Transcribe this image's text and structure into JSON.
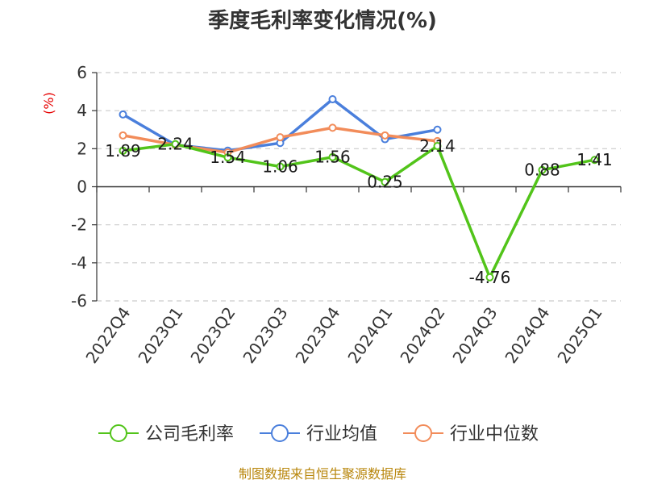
{
  "chart_data": {
    "type": "line",
    "title": "季度毛利率变化情况(%)",
    "ylabel": "(%)",
    "xlabel": "",
    "categories": [
      "2022Q4",
      "2023Q1",
      "2023Q2",
      "2023Q3",
      "2023Q4",
      "2024Q1",
      "2024Q2",
      "2024Q3",
      "2024Q4",
      "2025Q1"
    ],
    "ylim": [
      -6,
      6
    ],
    "yticks": [
      6,
      4,
      2,
      0,
      -2,
      -4,
      -6
    ],
    "grid": "horizontal dashed",
    "legend_position": "bottom",
    "series": [
      {
        "name": "公司毛利率",
        "color": "#52c41a",
        "values": [
          1.89,
          2.24,
          1.54,
          1.06,
          1.56,
          0.25,
          2.14,
          -4.76,
          0.88,
          1.41
        ],
        "labels": [
          "1.89",
          "2.24",
          "1.54",
          "1.06",
          "1.56",
          "0.25",
          "2.14",
          "-4.76",
          "0.88",
          "1.41"
        ]
      },
      {
        "name": "行业均值",
        "color": "#4a7fdc",
        "values": [
          3.8,
          2.2,
          1.9,
          2.3,
          4.6,
          2.5,
          3.0,
          null,
          null,
          null
        ]
      },
      {
        "name": "行业中位数",
        "color": "#f28c5a",
        "values": [
          2.7,
          2.2,
          1.8,
          2.6,
          3.1,
          2.7,
          2.4,
          null,
          null,
          null
        ]
      }
    ],
    "source": "制图数据来自恒生聚源数据库"
  }
}
